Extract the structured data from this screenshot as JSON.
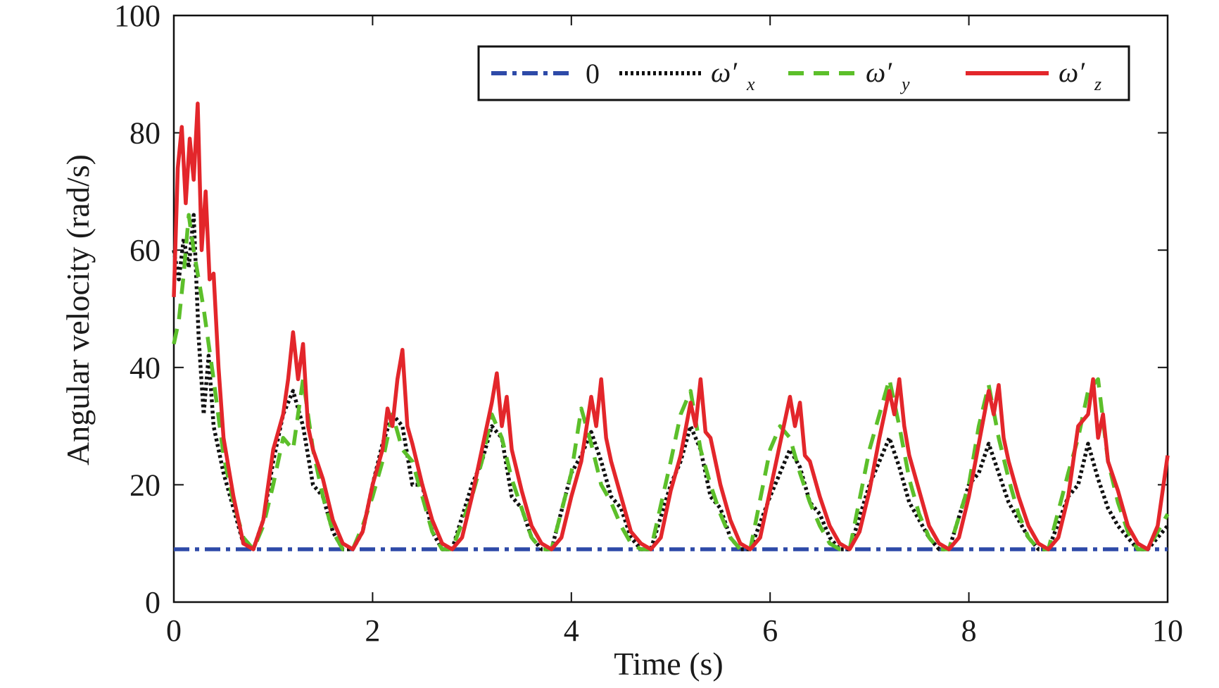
{
  "chart_data": {
    "type": "line",
    "xlabel": "Time (s)",
    "ylabel": "Angular velocity (rad/s)",
    "xlim": [
      0,
      10
    ],
    "ylim": [
      0,
      100
    ],
    "x_ticks": [
      "0",
      "2",
      "4",
      "6",
      "8",
      "10"
    ],
    "y_ticks": [
      "0",
      "20",
      "40",
      "60",
      "80",
      "100"
    ],
    "grid": false,
    "legend_position": "top-right",
    "series": [
      {
        "name": "0",
        "style": "dash-dot",
        "color": "#2e4aa8",
        "x": [
          0,
          10
        ],
        "y": [
          9,
          9
        ]
      },
      {
        "name": "ω′x",
        "style": "dotted",
        "color": "#111111",
        "x": [
          0.0,
          0.05,
          0.1,
          0.15,
          0.2,
          0.25,
          0.3,
          0.35,
          0.4,
          0.5,
          0.6,
          0.7,
          0.8,
          0.9,
          1.0,
          1.1,
          1.2,
          1.3,
          1.4,
          1.5,
          1.6,
          1.7,
          1.8,
          1.9,
          2.0,
          2.1,
          2.2,
          2.3,
          2.4,
          2.5,
          2.6,
          2.7,
          2.8,
          3.0,
          3.1,
          3.2,
          3.3,
          3.4,
          3.5,
          3.6,
          3.7,
          3.8,
          4.0,
          4.1,
          4.2,
          4.3,
          4.4,
          4.5,
          4.6,
          4.7,
          4.8,
          5.0,
          5.1,
          5.2,
          5.3,
          5.4,
          5.5,
          5.6,
          5.7,
          5.8,
          6.0,
          6.1,
          6.2,
          6.3,
          6.4,
          6.5,
          6.6,
          6.7,
          6.8,
          7.0,
          7.1,
          7.2,
          7.3,
          7.4,
          7.5,
          7.6,
          7.7,
          7.8,
          8.0,
          8.1,
          8.2,
          8.3,
          8.4,
          8.5,
          8.6,
          8.7,
          8.8,
          9.0,
          9.1,
          9.2,
          9.3,
          9.4,
          9.5,
          9.6,
          9.7,
          9.8,
          10.0
        ],
        "y": [
          60,
          55,
          62,
          57,
          66,
          45,
          32,
          42,
          30,
          22,
          16,
          10,
          9,
          14,
          24,
          32,
          36,
          30,
          20,
          18,
          12,
          9,
          9,
          12,
          20,
          27,
          32,
          30,
          20,
          20,
          12,
          9,
          9,
          20,
          24,
          30,
          28,
          18,
          16,
          11,
          9,
          9,
          22,
          25,
          29,
          24,
          18,
          16,
          11,
          9,
          9,
          20,
          24,
          30,
          26,
          18,
          16,
          11,
          9,
          9,
          18,
          22,
          26,
          23,
          17,
          15,
          11,
          9,
          9,
          20,
          24,
          28,
          23,
          17,
          14,
          11,
          9,
          9,
          20,
          22,
          27,
          22,
          17,
          14,
          11,
          9,
          9,
          18,
          20,
          27,
          21,
          16,
          13,
          11,
          9,
          9,
          13
        ]
      },
      {
        "name": "ω′y",
        "style": "dashed",
        "color": "#5cbf2a",
        "x": [
          0.0,
          0.05,
          0.1,
          0.15,
          0.2,
          0.25,
          0.3,
          0.35,
          0.4,
          0.5,
          0.6,
          0.7,
          0.8,
          0.9,
          1.0,
          1.1,
          1.2,
          1.3,
          1.4,
          1.5,
          1.6,
          1.7,
          1.8,
          1.9,
          2.0,
          2.1,
          2.2,
          2.3,
          2.4,
          2.5,
          2.6,
          2.7,
          2.8,
          3.0,
          3.1,
          3.2,
          3.3,
          3.4,
          3.5,
          3.6,
          3.7,
          3.8,
          4.0,
          4.1,
          4.2,
          4.3,
          4.4,
          4.5,
          4.6,
          4.7,
          4.8,
          5.0,
          5.1,
          5.2,
          5.3,
          5.4,
          5.5,
          5.6,
          5.7,
          5.8,
          6.0,
          6.1,
          6.2,
          6.3,
          6.4,
          6.5,
          6.6,
          6.7,
          6.8,
          7.0,
          7.1,
          7.2,
          7.3,
          7.4,
          7.5,
          7.6,
          7.7,
          7.8,
          8.0,
          8.1,
          8.2,
          8.3,
          8.4,
          8.5,
          8.6,
          8.7,
          8.8,
          9.0,
          9.1,
          9.2,
          9.3,
          9.4,
          9.5,
          9.6,
          9.7,
          9.8,
          10.0
        ],
        "y": [
          44,
          48,
          56,
          66,
          60,
          55,
          50,
          44,
          38,
          25,
          17,
          11,
          9,
          13,
          20,
          28,
          26,
          38,
          26,
          18,
          12,
          9,
          9,
          13,
          18,
          24,
          32,
          26,
          24,
          18,
          12,
          9,
          9,
          18,
          24,
          32,
          28,
          21,
          16,
          11,
          9,
          9,
          22,
          33,
          27,
          20,
          17,
          13,
          10,
          9,
          9,
          24,
          32,
          36,
          26,
          20,
          15,
          11,
          9,
          9,
          26,
          30,
          28,
          22,
          17,
          13,
          10,
          9,
          9,
          26,
          32,
          38,
          30,
          21,
          15,
          11,
          9,
          9,
          20,
          30,
          37,
          28,
          21,
          15,
          11,
          9,
          9,
          22,
          28,
          36,
          38,
          24,
          17,
          12,
          9,
          9,
          15
        ]
      },
      {
        "name": "ω′z",
        "style": "solid",
        "color": "#e3262b",
        "x": [
          0.0,
          0.04,
          0.08,
          0.12,
          0.16,
          0.2,
          0.24,
          0.28,
          0.32,
          0.36,
          0.4,
          0.45,
          0.5,
          0.6,
          0.7,
          0.8,
          0.9,
          1.0,
          1.1,
          1.15,
          1.2,
          1.25,
          1.3,
          1.35,
          1.4,
          1.5,
          1.6,
          1.7,
          1.8,
          1.9,
          2.0,
          2.1,
          2.15,
          2.2,
          2.25,
          2.3,
          2.35,
          2.4,
          2.5,
          2.6,
          2.7,
          2.8,
          2.9,
          3.0,
          3.1,
          3.2,
          3.25,
          3.3,
          3.35,
          3.4,
          3.5,
          3.6,
          3.7,
          3.8,
          3.9,
          4.0,
          4.1,
          4.2,
          4.25,
          4.3,
          4.35,
          4.4,
          4.5,
          4.6,
          4.7,
          4.8,
          4.9,
          5.0,
          5.1,
          5.2,
          5.25,
          5.3,
          5.35,
          5.4,
          5.5,
          5.6,
          5.7,
          5.8,
          5.9,
          6.0,
          6.1,
          6.2,
          6.25,
          6.3,
          6.35,
          6.4,
          6.5,
          6.6,
          6.7,
          6.8,
          6.9,
          7.0,
          7.1,
          7.2,
          7.25,
          7.3,
          7.35,
          7.4,
          7.5,
          7.6,
          7.7,
          7.8,
          7.9,
          8.0,
          8.1,
          8.2,
          8.25,
          8.3,
          8.35,
          8.4,
          8.5,
          8.6,
          8.7,
          8.8,
          8.9,
          9.0,
          9.1,
          9.2,
          9.25,
          9.3,
          9.35,
          9.4,
          9.5,
          9.6,
          9.7,
          9.8,
          9.9,
          10.0
        ],
        "y": [
          52,
          74,
          81,
          68,
          79,
          72,
          85,
          60,
          70,
          55,
          56,
          40,
          28,
          18,
          10,
          9,
          14,
          26,
          32,
          38,
          46,
          38,
          44,
          30,
          26,
          21,
          14,
          10,
          9,
          12,
          20,
          26,
          33,
          30,
          38,
          43,
          30,
          27,
          20,
          14,
          10,
          9,
          11,
          18,
          26,
          34,
          39,
          30,
          35,
          26,
          19,
          13,
          10,
          9,
          11,
          18,
          24,
          35,
          30,
          38,
          28,
          24,
          18,
          12,
          10,
          9,
          11,
          19,
          25,
          34,
          30,
          38,
          29,
          28,
          20,
          14,
          10,
          9,
          11,
          19,
          27,
          35,
          30,
          34,
          25,
          24,
          18,
          13,
          10,
          9,
          12,
          19,
          28,
          36,
          32,
          38,
          30,
          25,
          19,
          13,
          10,
          9,
          11,
          18,
          27,
          36,
          32,
          37,
          28,
          24,
          18,
          13,
          10,
          9,
          11,
          18,
          30,
          32,
          38,
          28,
          32,
          24,
          19,
          13,
          10,
          9,
          13,
          25
        ]
      }
    ]
  },
  "legend": {
    "items": [
      {
        "label": "0",
        "sub": ""
      },
      {
        "label": "ω′",
        "sub": "x"
      },
      {
        "label": "ω′",
        "sub": "y"
      },
      {
        "label": "ω′",
        "sub": "z"
      }
    ]
  }
}
